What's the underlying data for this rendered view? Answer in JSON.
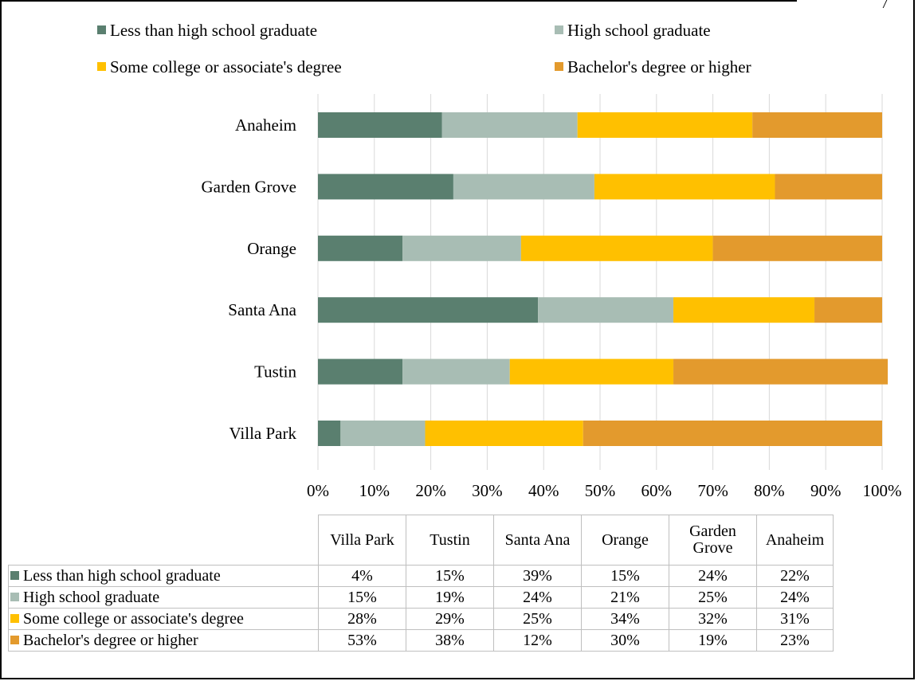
{
  "colors": {
    "less_than_hs": "#5a7f6f",
    "hs_grad": "#a8bdb4",
    "some_college": "#ffc000",
    "bachelors": "#e39a2d",
    "grid": "#d9d9d9"
  },
  "chart_data": {
    "type": "bar",
    "orientation": "horizontal",
    "stacked": "100%",
    "categories": [
      "Anaheim",
      "Garden Grove",
      "Orange",
      "Santa Ana",
      "Tustin",
      "Villa Park"
    ],
    "series": [
      {
        "name": "Less than high school graduate",
        "values": [
          22,
          24,
          15,
          39,
          15,
          4
        ]
      },
      {
        "name": "High school graduate",
        "values": [
          24,
          25,
          21,
          24,
          19,
          15
        ]
      },
      {
        "name": "Some college or associate's degree",
        "values": [
          31,
          32,
          34,
          25,
          29,
          28
        ]
      },
      {
        "name": "Bachelor's degree or higher",
        "values": [
          23,
          19,
          30,
          12,
          38,
          53
        ]
      }
    ],
    "xlim": [
      0,
      100
    ],
    "xticks": [
      "0%",
      "10%",
      "20%",
      "30%",
      "40%",
      "50%",
      "60%",
      "70%",
      "80%",
      "90%",
      "100%"
    ],
    "grid": "vertical",
    "legend_position": "top",
    "title": "",
    "xlabel": "",
    "ylabel": ""
  },
  "data_table": {
    "columns": [
      "Villa Park",
      "Tustin",
      "Santa Ana",
      "Orange",
      "Garden Grove",
      "Anaheim"
    ],
    "rows": [
      {
        "label": "Less than high school graduate",
        "cells": [
          "4%",
          "15%",
          "39%",
          "15%",
          "24%",
          "22%"
        ]
      },
      {
        "label": "High school graduate",
        "cells": [
          "15%",
          "19%",
          "24%",
          "21%",
          "25%",
          "24%"
        ]
      },
      {
        "label": "Some college or associate's degree",
        "cells": [
          "28%",
          "29%",
          "25%",
          "34%",
          "32%",
          "31%"
        ]
      },
      {
        "label": "Bachelor's degree or higher",
        "cells": [
          "53%",
          "38%",
          "12%",
          "30%",
          "19%",
          "23%"
        ]
      }
    ]
  }
}
